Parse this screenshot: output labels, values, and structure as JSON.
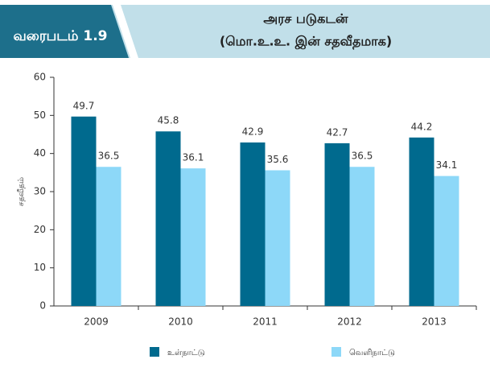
{
  "chart_data": {
    "type": "bar",
    "figure_label": "வரைபடம் 1.9",
    "title": [
      "அரச படுகடன்",
      "(மொ.உ.உ. இன் சதவீதமாக)"
    ],
    "y_label": "சதவீதம்",
    "categories": [
      "2009",
      "2010",
      "2011",
      "2012",
      "2013"
    ],
    "series": [
      {
        "name": "உள்நாட்டு",
        "color": "#006a8e",
        "values": [
          49.7,
          45.8,
          42.9,
          42.7,
          44.2
        ]
      },
      {
        "name": "வெளிநாட்டு",
        "color": "#8dd8f8",
        "values": [
          36.5,
          36.1,
          35.6,
          36.5,
          34.1
        ]
      }
    ],
    "ylim": [
      0,
      60
    ],
    "yticks": [
      0,
      10,
      20,
      30,
      40,
      50,
      60
    ],
    "grid": false,
    "legend": "bottom"
  }
}
